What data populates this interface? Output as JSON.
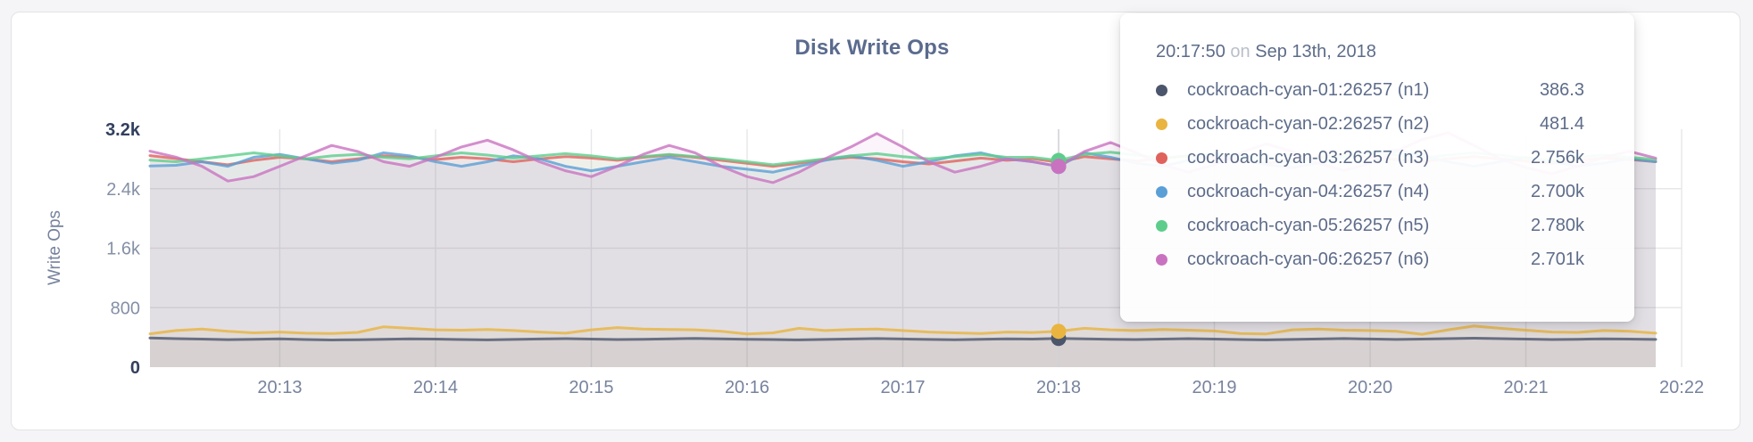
{
  "page": {
    "background": "#f5f5f7"
  },
  "card": {
    "background": "#ffffff",
    "border_color": "#e3e3e6"
  },
  "chart": {
    "title": "Disk Write Ops",
    "y_axis_label": "Write Ops",
    "grid_color": "#e7e7ea",
    "axis_text_color": "#8590a6",
    "axis_extreme_text_color": "#33405e",
    "x_text_color": "#77839e",
    "hover_line_color": "#d3d4d8"
  },
  "tooltip": {
    "time": "20:17:50",
    "connector": "on",
    "date": "Sep 13th, 2018",
    "rows": [
      {
        "label": "cockroach-cyan-01:26257 (n1)",
        "value": "386.3",
        "color": "#4b556b"
      },
      {
        "label": "cockroach-cyan-02:26257 (n2)",
        "value": "481.4",
        "color": "#e9b440"
      },
      {
        "label": "cockroach-cyan-03:26257 (n3)",
        "value": "2.756k",
        "color": "#e0625c"
      },
      {
        "label": "cockroach-cyan-04:26257 (n4)",
        "value": "2.700k",
        "color": "#5a9fd6"
      },
      {
        "label": "cockroach-cyan-05:26257 (n5)",
        "value": "2.780k",
        "color": "#5ecd8c"
      },
      {
        "label": "cockroach-cyan-06:26257 (n6)",
        "value": "2.701k",
        "color": "#c973c0"
      }
    ]
  },
  "chart_data": {
    "type": "line",
    "title": "Disk Write Ops",
    "ylabel": "Write Ops",
    "ylim": [
      0,
      3200
    ],
    "x_start": "20:12:10",
    "x_end": "20:21:50",
    "x_step_seconds": 10,
    "x_domain_seconds": 580,
    "grid": true,
    "legend_position": "tooltip",
    "y_ticks": [
      {
        "label": "0",
        "value": 0
      },
      {
        "label": "800",
        "value": 800
      },
      {
        "label": "1.6k",
        "value": 1600
      },
      {
        "label": "2.4k",
        "value": 2400
      },
      {
        "label": "3.2k",
        "value": 3200
      }
    ],
    "x_ticks": [
      {
        "label": "20:13",
        "t": 50
      },
      {
        "label": "20:14",
        "t": 110
      },
      {
        "label": "20:15",
        "t": 170
      },
      {
        "label": "20:16",
        "t": 230
      },
      {
        "label": "20:17",
        "t": 290
      },
      {
        "label": "20:18",
        "t": 350
      },
      {
        "label": "20:19",
        "t": 410
      },
      {
        "label": "20:20",
        "t": 470
      },
      {
        "label": "20:21",
        "t": 530
      },
      {
        "label": "20:22",
        "t": 590
      }
    ],
    "hover": {
      "time": "20:17:50",
      "date": "Sep 13th, 2018",
      "index": 35,
      "t": 350
    },
    "series": [
      {
        "name": "cockroach-cyan-01:26257 (n1)",
        "color": "#4b556b",
        "hover_value": 386.3,
        "values": [
          392,
          384,
          377,
          370,
          374,
          380,
          372,
          366,
          369,
          375,
          381,
          377,
          371,
          367,
          373,
          379,
          383,
          377,
          371,
          375,
          381,
          387,
          381,
          375,
          371,
          367,
          373,
          379,
          385,
          379,
          373,
          369,
          375,
          381,
          377,
          386.3,
          381,
          375,
          371,
          377,
          383,
          377,
          371,
          367,
          373,
          379,
          385,
          379,
          373,
          377,
          383,
          389,
          383,
          377,
          371,
          375,
          381,
          377,
          373
        ]
      },
      {
        "name": "cockroach-cyan-02:26257 (n2)",
        "color": "#e9b440",
        "hover_value": 481.4,
        "values": [
          448,
          492,
          512,
          482,
          462,
          472,
          457,
          452,
          467,
          543,
          522,
          502,
          497,
          507,
          492,
          472,
          457,
          502,
          532,
          512,
          507,
          502,
          482,
          447,
          462,
          522,
          492,
          507,
          512,
          492,
          472,
          462,
          452,
          472,
          466,
          481.4,
          522,
          502,
          492,
          507,
          497,
          487,
          452,
          447,
          502,
          512,
          497,
          492,
          482,
          442,
          502,
          552,
          522,
          497,
          472,
          467,
          492,
          482,
          457
        ]
      },
      {
        "name": "cockroach-cyan-03:26257 (n3)",
        "color": "#e0625c",
        "hover_value": 2756,
        "values": [
          2845,
          2805,
          2762,
          2722,
          2782,
          2822,
          2802,
          2762,
          2802,
          2842,
          2822,
          2792,
          2822,
          2802,
          2762,
          2802,
          2832,
          2812,
          2782,
          2822,
          2852,
          2822,
          2782,
          2742,
          2702,
          2742,
          2792,
          2822,
          2802,
          2762,
          2732,
          2772,
          2812,
          2782,
          2802,
          2756,
          2832,
          2802,
          2772,
          2812,
          2842,
          2812,
          2782,
          2742,
          2782,
          2822,
          2852,
          2822,
          2792,
          2762,
          2802,
          2832,
          2802,
          2772,
          2742,
          2782,
          2812,
          2792,
          2762
        ]
      },
      {
        "name": "cockroach-cyan-04:26257 (n4)",
        "color": "#5a9fd6",
        "hover_value": 2700,
        "values": [
          2705,
          2715,
          2762,
          2702,
          2822,
          2862,
          2802,
          2742,
          2782,
          2882,
          2842,
          2762,
          2702,
          2762,
          2842,
          2802,
          2702,
          2642,
          2702,
          2762,
          2822,
          2762,
          2702,
          2662,
          2622,
          2702,
          2782,
          2842,
          2782,
          2702,
          2762,
          2842,
          2882,
          2802,
          2762,
          2700,
          2882,
          2822,
          2742,
          2702,
          2782,
          2862,
          2802,
          2722,
          2682,
          2742,
          2822,
          2882,
          2922,
          2842,
          2762,
          2702,
          2762,
          2822,
          2762,
          2702,
          2742,
          2802,
          2762
        ]
      },
      {
        "name": "cockroach-cyan-05:26257 (n5)",
        "color": "#5ecd8c",
        "hover_value": 2780,
        "values": [
          2785,
          2762,
          2802,
          2842,
          2882,
          2842,
          2802,
          2842,
          2862,
          2822,
          2802,
          2842,
          2882,
          2852,
          2812,
          2842,
          2872,
          2842,
          2802,
          2832,
          2862,
          2832,
          2802,
          2762,
          2722,
          2762,
          2802,
          2842,
          2872,
          2832,
          2802,
          2832,
          2862,
          2822,
          2822,
          2780,
          2862,
          2892,
          2852,
          2812,
          2842,
          2872,
          2842,
          2802,
          2762,
          2802,
          2842,
          2882,
          2852,
          2812,
          2852,
          2882,
          2852,
          2812,
          2782,
          2822,
          2852,
          2822,
          2792
        ]
      },
      {
        "name": "cockroach-cyan-06:26257 (n6)",
        "color": "#c973c0",
        "hover_value": 2701,
        "values": [
          2905,
          2825,
          2702,
          2502,
          2562,
          2702,
          2842,
          2982,
          2902,
          2762,
          2702,
          2822,
          2962,
          3052,
          2922,
          2762,
          2642,
          2562,
          2702,
          2862,
          2982,
          2882,
          2702,
          2562,
          2482,
          2622,
          2802,
          2962,
          3142,
          2962,
          2762,
          2622,
          2702,
          2802,
          2762,
          2701,
          2902,
          3022,
          2882,
          2722,
          2622,
          2722,
          2882,
          3002,
          2902,
          2742,
          2642,
          2742,
          2902,
          3062,
          3152,
          2982,
          2802,
          2682,
          2602,
          2702,
          2822,
          2902,
          2812
        ]
      }
    ]
  }
}
